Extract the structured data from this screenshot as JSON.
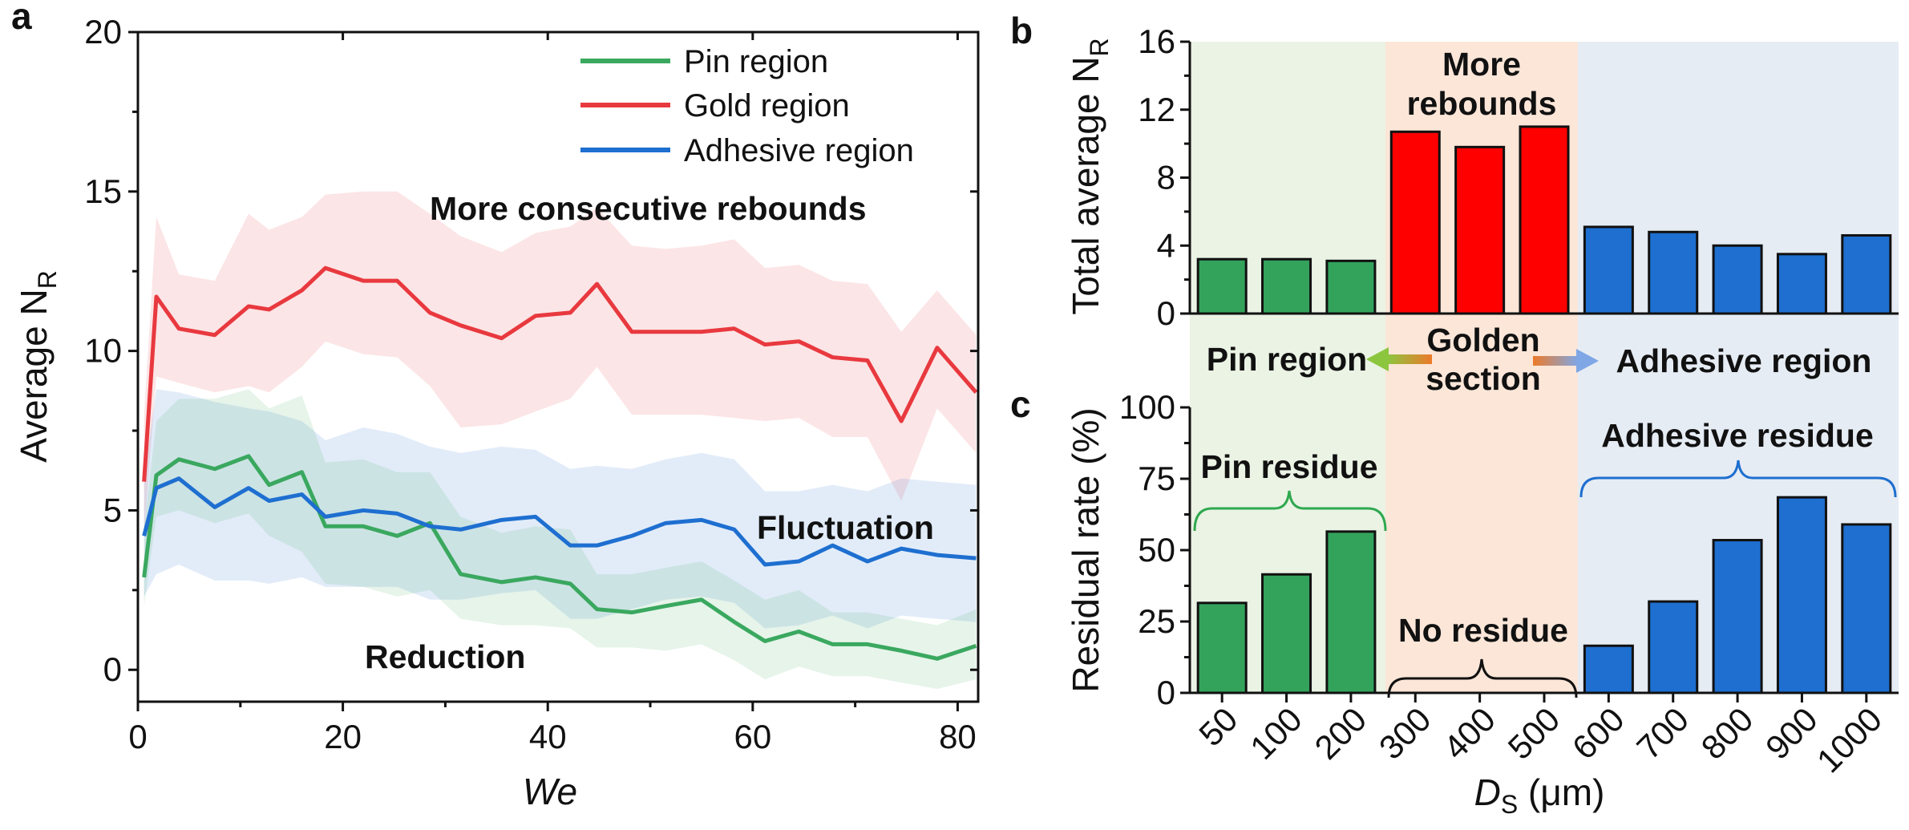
{
  "panels": {
    "a": "a",
    "b": "b",
    "c": "c"
  },
  "chart_data": [
    {
      "id": "a",
      "type": "line",
      "xlabel": "We",
      "ylabel": "Average N",
      "ylabel_sub": "R",
      "xlim": [
        0,
        82
      ],
      "ylim": [
        -1,
        20
      ],
      "xticks": [
        0,
        20,
        40,
        60,
        80
      ],
      "yticks": [
        0,
        5,
        10,
        15,
        20
      ],
      "legend_position": "top-right",
      "series": [
        {
          "name": "Pin region",
          "color": "#3aa85f",
          "x": [
            0.6,
            1.8,
            4,
            7.5,
            10.8,
            12.8,
            16,
            18.3,
            22,
            25.3,
            28.5,
            31.5,
            35.5,
            38.8,
            42.2,
            44.8,
            48.2,
            51.5,
            55,
            58.2,
            61.2,
            64.5,
            67.8,
            71.2,
            74.5,
            78,
            81.8
          ],
          "y": [
            2.9,
            6.1,
            6.6,
            6.3,
            6.7,
            5.8,
            6.2,
            4.5,
            4.5,
            4.2,
            4.6,
            3.0,
            2.75,
            2.9,
            2.7,
            1.9,
            1.8,
            2.0,
            2.2,
            1.5,
            0.9,
            1.2,
            0.8,
            0.8,
            0.6,
            0.35,
            0.75
          ],
          "band_upper": [
            4.5,
            7.8,
            8.5,
            8.5,
            8.8,
            8.2,
            8.6,
            6.5,
            6.6,
            6.2,
            6.2,
            4.8,
            4.3,
            4.5,
            4.4,
            3.0,
            3.0,
            3.2,
            3.4,
            2.8,
            2.2,
            2.5,
            1.8,
            1.8,
            1.6,
            1.4,
            1.9
          ],
          "band_lower": [
            2.0,
            4.8,
            5.0,
            4.6,
            4.9,
            4.2,
            3.7,
            2.7,
            2.6,
            2.3,
            2.5,
            1.6,
            1.4,
            1.4,
            1.3,
            0.7,
            0.7,
            0.6,
            0.8,
            0.3,
            -0.3,
            0.1,
            -0.2,
            -0.2,
            -0.4,
            -0.6,
            -0.3
          ]
        },
        {
          "name": "Gold region",
          "color": "#e8393f",
          "x": [
            0.6,
            1.8,
            4,
            7.5,
            10.8,
            12.8,
            16,
            18.3,
            22,
            25.3,
            28.5,
            31.5,
            35.5,
            38.8,
            42.2,
            44.8,
            48.2,
            51.5,
            55,
            58.2,
            61.2,
            64.5,
            67.8,
            71.2,
            74.5,
            78,
            81.8
          ],
          "y": [
            5.9,
            11.7,
            10.7,
            10.5,
            11.4,
            11.3,
            11.9,
            12.6,
            12.2,
            12.2,
            11.2,
            10.8,
            10.4,
            11.1,
            11.2,
            12.1,
            10.6,
            10.6,
            10.6,
            10.7,
            10.2,
            10.3,
            9.8,
            9.7,
            7.8,
            10.1,
            8.7
          ],
          "band_upper": [
            8.0,
            14.2,
            12.4,
            12.2,
            14.3,
            13.8,
            14.2,
            14.9,
            15.0,
            15.0,
            14.3,
            13.6,
            13.1,
            13.7,
            13.9,
            14.5,
            13.3,
            13.2,
            13.3,
            13.5,
            12.6,
            12.7,
            12.2,
            12.1,
            10.6,
            11.9,
            10.5
          ],
          "band_lower": [
            4.3,
            9.2,
            9.0,
            8.7,
            8.9,
            8.7,
            9.5,
            10.3,
            9.9,
            9.8,
            8.9,
            7.6,
            7.7,
            8.1,
            8.5,
            9.5,
            8.0,
            8.0,
            8.0,
            7.9,
            7.8,
            7.9,
            7.3,
            7.3,
            5.3,
            8.2,
            6.8
          ]
        },
        {
          "name": "Adhesive region",
          "color": "#1e6fd0",
          "x": [
            0.6,
            1.8,
            4,
            7.5,
            10.8,
            12.8,
            16,
            18.3,
            22,
            25.3,
            28.5,
            31.5,
            35.5,
            38.8,
            42.2,
            44.8,
            48.2,
            51.5,
            55,
            58.2,
            61.2,
            64.5,
            67.8,
            71.2,
            74.5,
            78,
            81.8
          ],
          "y": [
            4.2,
            5.7,
            6.0,
            5.1,
            5.7,
            5.3,
            5.5,
            4.8,
            5.0,
            4.9,
            4.5,
            4.4,
            4.7,
            4.8,
            3.9,
            3.9,
            4.2,
            4.6,
            4.7,
            4.4,
            3.3,
            3.4,
            3.9,
            3.4,
            3.8,
            3.6,
            3.5
          ],
          "band_upper": [
            6.0,
            8.8,
            8.7,
            8.4,
            8.2,
            8.1,
            7.8,
            7.2,
            7.6,
            7.4,
            7.0,
            6.8,
            7.0,
            6.9,
            6.3,
            6.4,
            6.3,
            6.6,
            6.8,
            6.6,
            5.6,
            5.6,
            5.8,
            5.6,
            6.0,
            5.9,
            5.8
          ],
          "band_lower": [
            2.3,
            3.0,
            3.3,
            2.8,
            2.8,
            2.7,
            2.9,
            2.6,
            2.6,
            2.6,
            2.2,
            2.2,
            2.4,
            2.5,
            1.6,
            1.6,
            1.9,
            2.2,
            2.3,
            2.1,
            1.3,
            1.4,
            1.7,
            1.3,
            1.7,
            1.6,
            1.5
          ]
        }
      ],
      "annotations": [
        {
          "text": "More consecutive rebounds",
          "color": "#e8393f"
        },
        {
          "text": "Fluctuation",
          "color": "#1e6fd0"
        },
        {
          "text": "Reduction",
          "color": "#3aa85f"
        }
      ]
    },
    {
      "id": "b",
      "type": "bar",
      "ylabel": "Total average N",
      "ylabel_sub": "R",
      "ylim": [
        0,
        16
      ],
      "yticks": [
        0,
        4,
        8,
        12,
        16
      ],
      "categories": [
        "50",
        "100",
        "200",
        "300",
        "400",
        "500",
        "600",
        "700",
        "800",
        "900",
        "1000"
      ],
      "values": [
        3.2,
        3.2,
        3.1,
        10.7,
        9.8,
        11.0,
        5.1,
        4.8,
        4.0,
        3.5,
        4.6
      ],
      "bar_colors": [
        "#33a35c",
        "#33a35c",
        "#33a35c",
        "#ff0000",
        "#ff0000",
        "#ff0000",
        "#1e6fd0",
        "#1e6fd0",
        "#1e6fd0",
        "#1e6fd0",
        "#1e6fd0"
      ],
      "region_colors": [
        "#eaf3e4",
        "#fbe6d8",
        "#e6ecf3"
      ],
      "annotations": [
        {
          "text": "More",
          "color": "#ff0000"
        },
        {
          "text": "rebounds",
          "color": "#ff0000"
        }
      ]
    },
    {
      "id": "c",
      "type": "bar",
      "xlabel": "D",
      "xlabel_sub": "S",
      "xlabel_unit": " (μm)",
      "ylabel": "Residual rate (%)",
      "ylim": [
        0,
        100
      ],
      "yticks": [
        0,
        25,
        50,
        75,
        100
      ],
      "categories": [
        "50",
        "100",
        "200",
        "300",
        "400",
        "500",
        "600",
        "700",
        "800",
        "900",
        "1000"
      ],
      "values": [
        31.5,
        41.5,
        56.5,
        0,
        0,
        0,
        16.5,
        32,
        53.5,
        68.5,
        59
      ],
      "bar_colors": [
        "#33a35c",
        "#33a35c",
        "#33a35c",
        "#ff0000",
        "#ff0000",
        "#ff0000",
        "#1e6fd0",
        "#1e6fd0",
        "#1e6fd0",
        "#1e6fd0",
        "#1e6fd0"
      ],
      "annotations": [
        {
          "text": "Pin residue",
          "color": "#2fa84f"
        },
        {
          "text": "No residue",
          "color": "#111111"
        },
        {
          "text": "Adhesive residue",
          "color": "#1e6fd0"
        }
      ]
    }
  ],
  "region_labels": {
    "pin": {
      "text": "Pin region",
      "color": "#2fa84f"
    },
    "golden_1": {
      "text": "Golden",
      "color": "#ec7a2a"
    },
    "golden_2": {
      "text": "section",
      "color": "#ec7a2a"
    },
    "adhesive": {
      "text": "Adhesive region",
      "color": "#1e6fd0"
    }
  }
}
